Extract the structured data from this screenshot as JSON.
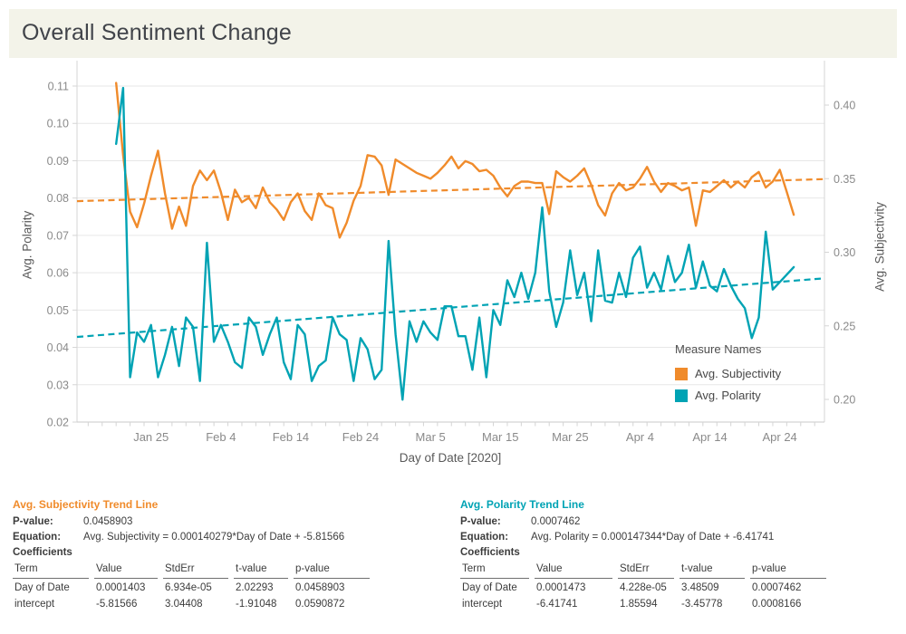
{
  "title": "Overall Sentiment Change",
  "chart_data": {
    "type": "line",
    "title": "Overall Sentiment Change",
    "x_axis": {
      "title": "Day of Date [2020]",
      "tick_labels": [
        "Jan 25",
        "Feb 4",
        "Feb 14",
        "Feb 24",
        "Mar 5",
        "Mar 15",
        "Mar 25",
        "Apr 4",
        "Apr 14",
        "Apr 24"
      ],
      "tick_days": [
        25,
        35,
        45,
        55,
        65,
        75,
        85,
        95,
        105,
        115
      ],
      "domain_days": [
        14.4,
        121.4
      ],
      "grid": false
    },
    "left_axis": {
      "title": "Avg. Polarity",
      "ticks": [
        0.02,
        0.03,
        0.04,
        0.05,
        0.06,
        0.07,
        0.08,
        0.09,
        0.1,
        0.11
      ],
      "range": [
        0.02,
        0.11
      ],
      "grid": true
    },
    "right_axis": {
      "title": "Avg. Subjectivity",
      "ticks": [
        0.2,
        0.25,
        0.3,
        0.35,
        0.4
      ],
      "range": [
        0.185,
        0.425
      ],
      "grid": false
    },
    "series": [
      {
        "name": "Avg. Subjectivity",
        "color": "#F08B2B",
        "axis": "right",
        "start_day": 20,
        "start_date_label": "Jan 20, 2020",
        "values": [
          0.415,
          0.366,
          0.3275,
          0.317,
          0.333,
          0.352,
          0.369,
          0.34,
          0.316,
          0.331,
          0.318,
          0.345,
          0.3555,
          0.349,
          0.3555,
          0.341,
          0.322,
          0.3425,
          0.334,
          0.337,
          0.33,
          0.344,
          0.334,
          0.329,
          0.322,
          0.334,
          0.34,
          0.328,
          0.322,
          0.34,
          0.332,
          0.33,
          0.31,
          0.32,
          0.335,
          0.345,
          0.366,
          0.365,
          0.359,
          0.339,
          0.363,
          0.36,
          0.357,
          0.354,
          0.352,
          0.35,
          0.354,
          0.359,
          0.365,
          0.357,
          0.362,
          0.36,
          0.355,
          0.356,
          0.352,
          0.344,
          0.338,
          0.345,
          0.348,
          0.348,
          0.347,
          0.347,
          0.326,
          0.355,
          0.351,
          0.348,
          0.352,
          0.357,
          0.346,
          0.332,
          0.325,
          0.34,
          0.347,
          0.342,
          0.344,
          0.35,
          0.358,
          0.348,
          0.341,
          0.347,
          0.345,
          0.342,
          0.344,
          0.318,
          0.342,
          0.341,
          0.345,
          0.349,
          0.344,
          0.348,
          0.344,
          0.351,
          0.3545,
          0.344,
          0.348,
          0.356,
          0.341,
          0.3255
        ]
      },
      {
        "name": "Avg. Polarity",
        "color": "#00A3B4",
        "axis": "left",
        "start_day": 20,
        "start_date_label": "Jan 20, 2020",
        "values": [
          0.0945,
          0.1095,
          0.032,
          0.044,
          0.0415,
          0.046,
          0.032,
          0.038,
          0.0455,
          0.035,
          0.048,
          0.0455,
          0.031,
          0.068,
          0.0415,
          0.046,
          0.0415,
          0.036,
          0.0345,
          0.048,
          0.0455,
          0.038,
          0.0435,
          0.048,
          0.036,
          0.0315,
          0.046,
          0.0435,
          0.031,
          0.035,
          0.0365,
          0.048,
          0.0435,
          0.042,
          0.031,
          0.0425,
          0.0395,
          0.0315,
          0.034,
          0.0685,
          0.0435,
          0.026,
          0.047,
          0.0415,
          0.047,
          0.044,
          0.042,
          0.051,
          0.051,
          0.043,
          0.043,
          0.034,
          0.048,
          0.032,
          0.05,
          0.046,
          0.058,
          0.0535,
          0.06,
          0.053,
          0.06,
          0.0775,
          0.055,
          0.0455,
          0.052,
          0.066,
          0.054,
          0.06,
          0.047,
          0.066,
          0.0525,
          0.052,
          0.06,
          0.0535,
          0.064,
          0.067,
          0.056,
          0.06,
          0.0555,
          0.0645,
          0.0575,
          0.06,
          0.0675,
          0.056,
          0.063,
          0.0565,
          0.055,
          0.061,
          0.0565,
          0.053,
          0.0505,
          0.0425,
          0.048,
          0.071,
          0.0555,
          0.0575,
          0.0595,
          0.0615
        ]
      }
    ],
    "trend_lines": [
      {
        "name": "Avg. Subjectivity Trend Line",
        "axis": "right",
        "color": "#F08B2B",
        "start_value": 0.3347,
        "end_value": 0.3497
      },
      {
        "name": "Avg. Polarity Trend Line",
        "axis": "left",
        "color": "#00A3B4",
        "start_value": 0.0428,
        "end_value": 0.0585
      }
    ],
    "legend_position": "inside-right"
  },
  "legend": {
    "title": "Measure Names",
    "entries": [
      {
        "label": "Avg. Subjectivity",
        "color": "#F08B2B"
      },
      {
        "label": "Avg. Polarity",
        "color": "#00A3B4"
      }
    ]
  },
  "labels": {
    "p_value": "P-value:",
    "equation": "Equation:",
    "coefficients": "Coefficients"
  },
  "trend_tables": {
    "columns": [
      "Term",
      "Value",
      "StdErr",
      "t-value",
      "p-value"
    ],
    "left": {
      "title": "Avg. Subjectivity Trend Line",
      "p_value": "0.0458903",
      "equation": "Avg. Subjectivity = 0.000140279*Day of Date + -5.81566",
      "rows": [
        {
          "term": "Day of Date",
          "value": "0.0001403",
          "stderr": "6.934e-05",
          "tvalue": "2.02293",
          "pvalue": "0.0458903"
        },
        {
          "term": "intercept",
          "value": "-5.81566",
          "stderr": "3.04408",
          "tvalue": "-1.91048",
          "pvalue": "0.0590872"
        }
      ]
    },
    "right": {
      "title": "Avg. Polarity Trend Line",
      "p_value": "0.0007462",
      "equation": "Avg. Polarity = 0.000147344*Day of Date + -6.41741",
      "rows": [
        {
          "term": "Day of Date",
          "value": "0.0001473",
          "stderr": "4.228e-05",
          "tvalue": "3.48509",
          "pvalue": "0.0007462"
        },
        {
          "term": "intercept",
          "value": "-6.41741",
          "stderr": "1.85594",
          "tvalue": "-3.45778",
          "pvalue": "0.0008166"
        }
      ]
    }
  },
  "colors": {
    "orange": "#F08B2B",
    "teal": "#00A3B4",
    "title_bar_bg": "#F3F3E9",
    "gridline": "#E7E7E7"
  }
}
